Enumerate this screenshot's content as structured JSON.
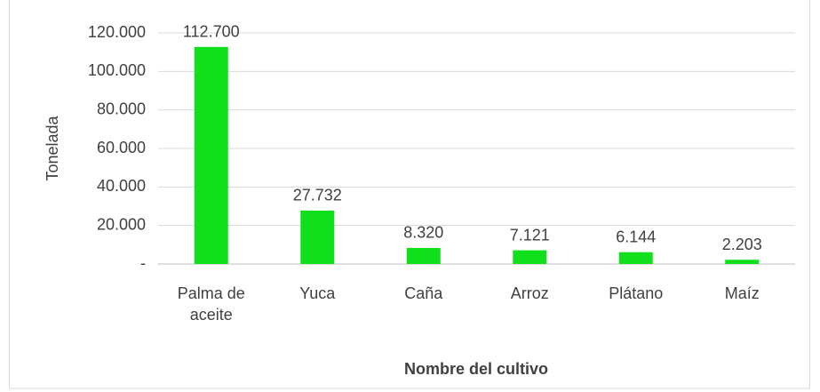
{
  "chart_data": {
    "type": "bar",
    "x_label": "Nombre del cultivo",
    "y_label": "Tonelada",
    "categories": [
      "Palma de aceite",
      "Yuca",
      "Caña",
      "Arroz",
      "Plátano",
      "Maíz"
    ],
    "values": [
      112700,
      27732,
      8320,
      7121,
      6144,
      2203
    ],
    "value_labels": [
      "112.700",
      "27.732",
      "8.320",
      "7.121",
      "6.144",
      "2.203"
    ],
    "color": "#10e01c",
    "ylim": [
      0,
      120000
    ],
    "yticks": [
      {
        "value": 0,
        "label": "-"
      },
      {
        "value": 20000,
        "label": "20.000"
      },
      {
        "value": 40000,
        "label": "40.000"
      },
      {
        "value": 60000,
        "label": "60.000"
      },
      {
        "value": 80000,
        "label": "80.000"
      },
      {
        "value": 100000,
        "label": "100.000"
      },
      {
        "value": 120000,
        "label": "120.000"
      }
    ],
    "grid": true
  }
}
